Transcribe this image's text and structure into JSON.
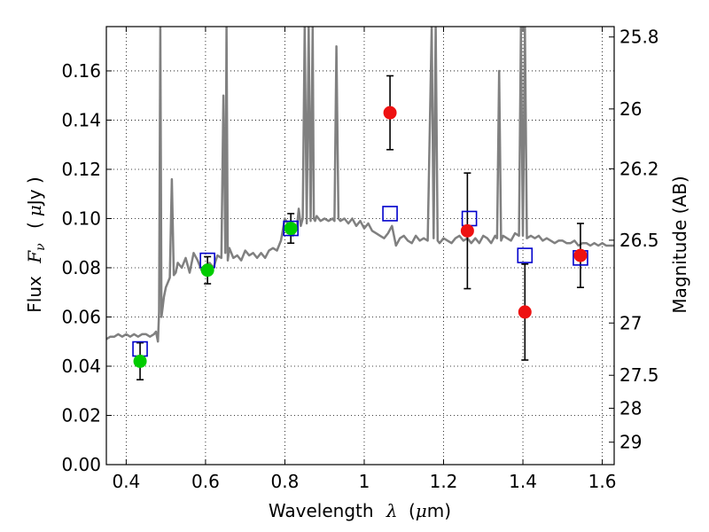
{
  "chart_data": {
    "type": "scatter",
    "title": "",
    "xlabel": "Wavelength",
    "xlabel_symbol": "λ",
    "xlabel_unit_open": "(",
    "xlabel_unit_mu": "μ",
    "xlabel_unit_rest": "m)",
    "ylabel": "Flux",
    "ylabel_symbol": "F",
    "ylabel_subscript": "ν",
    "ylabel_unit_open": "(",
    "ylabel_unit_mu": "μ",
    "ylabel_unit_rest": "Jy )",
    "y2label": "Magnitude (AB)",
    "xlim": [
      0.35,
      1.63
    ],
    "ylim": [
      0.0,
      0.178
    ],
    "grid": true,
    "x_ticks": [
      0.4,
      0.6,
      0.8,
      1.0,
      1.2,
      1.4,
      1.6
    ],
    "x_tick_labels": [
      "0.4",
      "0.6",
      "0.8",
      "1",
      "1.2",
      "1.4",
      "1.6"
    ],
    "y_ticks": [
      0.0,
      0.02,
      0.04,
      0.06,
      0.08,
      0.1,
      0.12,
      0.14,
      0.16
    ],
    "y_tick_labels": [
      "0.00",
      "0.02",
      "0.04",
      "0.06",
      "0.08",
      "0.10",
      "0.12",
      "0.14",
      "0.16"
    ],
    "y2_ticks": [
      25.8,
      26,
      26.2,
      26.5,
      27,
      27.5,
      28,
      29
    ],
    "y2_tick_labels": [
      "25.8",
      "26",
      "26.2",
      "26.5",
      "27",
      "27.5",
      "28",
      "29"
    ],
    "colors": {
      "spectrum": "#808080",
      "model_points": "#0000cc",
      "green_points": "#00cc00",
      "red_points": "#ee1111",
      "errorbars": "#000000",
      "grid": "#000000"
    },
    "spectrum": {
      "x": [
        0.35,
        0.36,
        0.37,
        0.38,
        0.39,
        0.4,
        0.41,
        0.42,
        0.43,
        0.44,
        0.45,
        0.46,
        0.47,
        0.475,
        0.48,
        0.483,
        0.486,
        0.489,
        0.492,
        0.495,
        0.5,
        0.505,
        0.51,
        0.515,
        0.52,
        0.525,
        0.53,
        0.54,
        0.55,
        0.56,
        0.57,
        0.58,
        0.59,
        0.6,
        0.61,
        0.62,
        0.63,
        0.64,
        0.645,
        0.65,
        0.653,
        0.656,
        0.66,
        0.67,
        0.68,
        0.69,
        0.7,
        0.71,
        0.72,
        0.73,
        0.74,
        0.75,
        0.76,
        0.77,
        0.78,
        0.79,
        0.8,
        0.81,
        0.82,
        0.83,
        0.835,
        0.84,
        0.845,
        0.85,
        0.855,
        0.86,
        0.865,
        0.87,
        0.873,
        0.876,
        0.88,
        0.89,
        0.9,
        0.91,
        0.92,
        0.925,
        0.93,
        0.935,
        0.94,
        0.95,
        0.96,
        0.97,
        0.98,
        0.99,
        1.0,
        1.01,
        1.02,
        1.03,
        1.04,
        1.05,
        1.06,
        1.07,
        1.08,
        1.09,
        1.1,
        1.11,
        1.12,
        1.13,
        1.14,
        1.15,
        1.16,
        1.17,
        1.175,
        1.18,
        1.185,
        1.19,
        1.2,
        1.21,
        1.22,
        1.23,
        1.24,
        1.25,
        1.26,
        1.27,
        1.28,
        1.29,
        1.3,
        1.31,
        1.32,
        1.33,
        1.335,
        1.34,
        1.345,
        1.35,
        1.36,
        1.37,
        1.38,
        1.39,
        1.395,
        1.4,
        1.405,
        1.41,
        1.42,
        1.43,
        1.44,
        1.45,
        1.46,
        1.47,
        1.48,
        1.49,
        1.5,
        1.51,
        1.52,
        1.53,
        1.54,
        1.55,
        1.56,
        1.57,
        1.58,
        1.59,
        1.6,
        1.61,
        1.62,
        1.63
      ],
      "y": [
        0.051,
        0.052,
        0.052,
        0.053,
        0.052,
        0.053,
        0.052,
        0.053,
        0.052,
        0.053,
        0.053,
        0.052,
        0.053,
        0.054,
        0.05,
        0.062,
        0.178,
        0.06,
        0.064,
        0.068,
        0.072,
        0.074,
        0.076,
        0.116,
        0.077,
        0.078,
        0.082,
        0.08,
        0.084,
        0.078,
        0.086,
        0.083,
        0.079,
        0.081,
        0.082,
        0.08,
        0.085,
        0.084,
        0.15,
        0.086,
        0.178,
        0.083,
        0.088,
        0.084,
        0.085,
        0.083,
        0.087,
        0.085,
        0.086,
        0.084,
        0.086,
        0.084,
        0.087,
        0.088,
        0.087,
        0.091,
        0.1,
        0.097,
        0.093,
        0.096,
        0.104,
        0.097,
        0.1,
        0.178,
        0.098,
        0.178,
        0.099,
        0.178,
        0.1,
        0.099,
        0.101,
        0.099,
        0.1,
        0.099,
        0.1,
        0.099,
        0.17,
        0.1,
        0.099,
        0.1,
        0.098,
        0.1,
        0.097,
        0.099,
        0.096,
        0.098,
        0.095,
        0.094,
        0.093,
        0.092,
        0.094,
        0.097,
        0.089,
        0.092,
        0.093,
        0.091,
        0.09,
        0.093,
        0.091,
        0.092,
        0.091,
        0.178,
        0.092,
        0.178,
        0.091,
        0.09,
        0.092,
        0.091,
        0.09,
        0.092,
        0.093,
        0.091,
        0.092,
        0.09,
        0.092,
        0.09,
        0.093,
        0.092,
        0.09,
        0.093,
        0.092,
        0.16,
        0.091,
        0.093,
        0.092,
        0.091,
        0.094,
        0.093,
        0.178,
        0.093,
        0.178,
        0.092,
        0.093,
        0.092,
        0.093,
        0.091,
        0.092,
        0.091,
        0.09,
        0.091,
        0.091,
        0.09,
        0.09,
        0.091,
        0.089,
        0.09,
        0.09,
        0.089,
        0.09,
        0.089,
        0.09,
        0.089,
        0.089,
        0.089
      ]
    },
    "series": [
      {
        "marker": "open-square",
        "x": [
          0.435,
          0.605,
          0.815,
          1.065,
          1.265,
          1.405,
          1.545
        ],
        "y": [
          0.047,
          0.083,
          0.096,
          0.102,
          0.1,
          0.085,
          0.084
        ]
      },
      {
        "marker": "filled-circle",
        "color": "green",
        "x": [
          0.435,
          0.605,
          0.815
        ],
        "y": [
          0.042,
          0.079,
          0.096
        ],
        "err": [
          0.0075,
          0.0055,
          0.006
        ]
      },
      {
        "marker": "filled-circle",
        "color": "red",
        "x": [
          1.065,
          1.26,
          1.405,
          1.545
        ],
        "y": [
          0.143,
          0.095,
          0.062,
          0.085
        ],
        "err": [
          0.015,
          0.0235,
          0.0195,
          0.013
        ]
      }
    ]
  }
}
